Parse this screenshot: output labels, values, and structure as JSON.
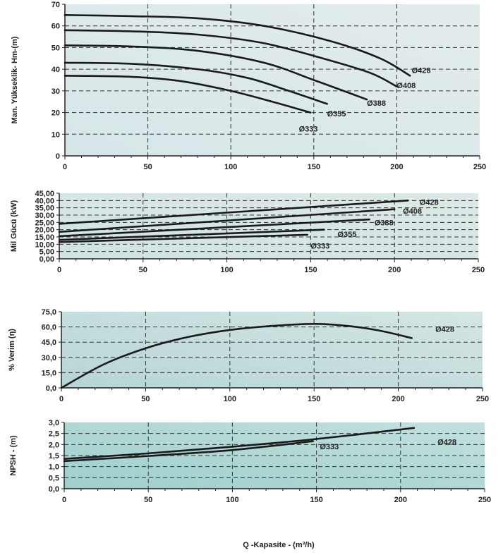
{
  "x_axis_label": "Q -Kapasite - (m³/h)",
  "chart_data": [
    {
      "type": "line",
      "ylabel": "Man. Yükseklik- Hm-(m)",
      "xlim": [
        0,
        250
      ],
      "ylim": [
        0,
        70
      ],
      "x_ticks": [
        "0",
        "50",
        "100",
        "150",
        "200",
        "250"
      ],
      "y_ticks": [
        "0",
        "10",
        "20",
        "30",
        "40",
        "50",
        "60",
        "70"
      ],
      "grid": true,
      "bg": [
        "#d6e6e8",
        "#e3ecec"
      ],
      "series": [
        {
          "name": "Ø428",
          "label_at": [
            209,
            39.5
          ],
          "points": [
            [
              0,
              65
            ],
            [
              40,
              64.5
            ],
            [
              80,
              63.5
            ],
            [
              120,
              60
            ],
            [
              160,
              53
            ],
            [
              190,
              45
            ],
            [
              208,
              37
            ]
          ]
        },
        {
          "name": "Ø408",
          "label_at": [
            200,
            32.5
          ],
          "points": [
            [
              0,
              58
            ],
            [
              40,
              57.5
            ],
            [
              80,
              56
            ],
            [
              120,
              52
            ],
            [
              160,
              44
            ],
            [
              185,
              38
            ],
            [
              200,
              32
            ]
          ]
        },
        {
          "name": "Ø388",
          "label_at": [
            182,
            24.5
          ],
          "points": [
            [
              0,
              51
            ],
            [
              40,
              50.5
            ],
            [
              80,
              48.5
            ],
            [
              120,
              43
            ],
            [
              150,
              35
            ],
            [
              175,
              28
            ],
            [
              182,
              26
            ]
          ]
        },
        {
          "name": "Ø355",
          "label_at": [
            158,
            19.5
          ],
          "points": [
            [
              0,
              43
            ],
            [
              40,
              42.5
            ],
            [
              80,
              40
            ],
            [
              110,
              36
            ],
            [
              135,
              30
            ],
            [
              158,
              24
            ]
          ]
        },
        {
          "name": "Ø333",
          "label_at": [
            141,
            12.5
          ],
          "points": [
            [
              0,
              37
            ],
            [
              40,
              36.5
            ],
            [
              70,
              34.5
            ],
            [
              100,
              30
            ],
            [
              125,
              25
            ],
            [
              148,
              20
            ]
          ]
        }
      ]
    },
    {
      "type": "line",
      "ylabel": "Mil Gücü (kW)",
      "xlim": [
        0,
        250
      ],
      "ylim": [
        0,
        45
      ],
      "x_ticks": [
        "0",
        "50",
        "100",
        "150",
        "200",
        "250"
      ],
      "y_ticks": [
        "0,00",
        "5,00",
        "10,00",
        "15,00",
        "20,00",
        "25,00",
        "30,00",
        "35,00",
        "40,00",
        "45,00"
      ],
      "grid": true,
      "bg": [
        "#cfe3e3",
        "#dde9e7"
      ],
      "series": [
        {
          "name": "Ø428",
          "label_at": [
            215,
            39
          ],
          "points": [
            [
              0,
              24
            ],
            [
              208,
              40
            ]
          ]
        },
        {
          "name": "Ø408",
          "label_at": [
            205,
            33
          ],
          "points": [
            [
              0,
              18.5
            ],
            [
              200,
              34
            ]
          ]
        },
        {
          "name": "Ø388",
          "label_at": [
            188,
            25
          ],
          "points": [
            [
              0,
              15.5
            ],
            [
              185,
              27
            ]
          ]
        },
        {
          "name": "Ø355",
          "label_at": [
            166,
            17
          ],
          "points": [
            [
              0,
              13
            ],
            [
              158,
              20
            ]
          ]
        },
        {
          "name": "Ø333",
          "label_at": [
            150,
            9
          ],
          "points": [
            [
              0,
              11.5
            ],
            [
              148,
              16.5
            ]
          ]
        }
      ]
    },
    {
      "type": "line",
      "ylabel": "% Verim (η)",
      "xlim": [
        0,
        250
      ],
      "ylim": [
        0,
        75
      ],
      "x_ticks": [
        "0",
        "50",
        "100",
        "150",
        "200",
        "250"
      ],
      "y_ticks": [
        "0,0",
        "15,0",
        "30,0",
        "45,0",
        "60,0",
        "75,0"
      ],
      "grid": true,
      "bg": [
        "#b6d5d5",
        "#d4e6e4"
      ],
      "labels": [
        {
          "text": "Ø428",
          "at": [
            222,
            58
          ]
        }
      ],
      "series": [
        {
          "name": "Ø428",
          "points": [
            [
              0,
              0
            ],
            [
              25,
              23
            ],
            [
              50,
              39
            ],
            [
              75,
              50
            ],
            [
              100,
              57
            ],
            [
              125,
              61
            ],
            [
              150,
              63
            ],
            [
              170,
              61
            ],
            [
              190,
              56
            ],
            [
              208,
              49
            ]
          ]
        }
      ]
    },
    {
      "type": "line",
      "ylabel": "NPSH - (m)",
      "xlim": [
        0,
        250
      ],
      "ylim": [
        0,
        3
      ],
      "x_ticks": [
        "0",
        "50",
        "100",
        "150",
        "200",
        "250"
      ],
      "y_ticks": [
        "0,0",
        "0,5",
        "1,0",
        "1,5",
        "2,0",
        "2,5",
        "3,0"
      ],
      "grid": true,
      "bg": [
        "#9ecfcc",
        "#c2e0dd"
      ],
      "labels": [
        {
          "text": "Ø428",
          "at": [
            222,
            2.12
          ]
        },
        {
          "text": "Ø333",
          "at": [
            152,
            1.92
          ]
        }
      ],
      "series": [
        {
          "name": "Ø428",
          "points": [
            [
              0,
              1.35
            ],
            [
              50,
              1.6
            ],
            [
              100,
              1.9
            ],
            [
              150,
              2.25
            ],
            [
              208,
              2.75
            ]
          ]
        },
        {
          "name": "Ø333",
          "points": [
            [
              0,
              1.25
            ],
            [
              50,
              1.48
            ],
            [
              100,
              1.75
            ],
            [
              148,
              2.15
            ]
          ]
        }
      ]
    }
  ]
}
